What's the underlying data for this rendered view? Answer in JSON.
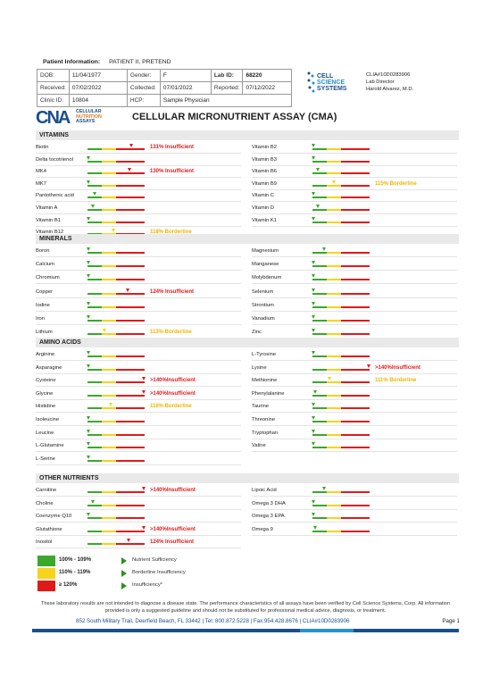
{
  "patient": {
    "label": "Patient Information:",
    "name": "PATIENT II, PRETEND",
    "dob_label": "DOB:",
    "dob": "11/04/1977",
    "gender_label": "Gender:",
    "gender": "F",
    "labid_label": "Lab ID:",
    "labid": "68220",
    "received_label": "Received:",
    "received": "07/02/2022",
    "collected_label": "Collected:",
    "collected": "07/01/2022",
    "reported_label": "Reported:",
    "reported": "07/12/2022",
    "clinic_label": "Clinic ID:",
    "clinic": "10804",
    "hcp_label": "HCP:",
    "hcp": "Sample Physician"
  },
  "lab": {
    "logo_lines": [
      "CELL",
      "SCIENCE",
      "SYSTEMS"
    ],
    "clia": "CLIA#10D0283906",
    "director_title": "Lab Director",
    "director": "Harold Alvarez, M.D."
  },
  "cna_logo": {
    "mark": "CNA",
    "lines": [
      "CELLULAR",
      "NUTRITION",
      "ASSAYS"
    ]
  },
  "title": "CELLULAR MICRONUTRIENT ASSAY (CMA)",
  "sections": [
    {
      "title": "VITAMINS",
      "left": [
        {
          "name": "Biotin",
          "pos": 0.76,
          "status": "131% Insufficient",
          "kind": "ins"
        },
        {
          "name": "Delta tocotrienol",
          "pos": 0.02,
          "status": "",
          "kind": ""
        },
        {
          "name": "MK4",
          "pos": 0.74,
          "status": "130% Insufficient",
          "kind": "ins"
        },
        {
          "name": "MK7",
          "pos": 0.02,
          "status": "",
          "kind": ""
        },
        {
          "name": "Pantothenic acid",
          "pos": 0.12,
          "status": "",
          "kind": ""
        },
        {
          "name": "Vitamin A",
          "pos": 0.1,
          "status": "",
          "kind": ""
        },
        {
          "name": "Vitamin B1",
          "pos": 0.02,
          "status": "",
          "kind": ""
        },
        {
          "name": "Vitamin B12",
          "pos": 0.45,
          "status": "118% Borderline",
          "kind": "bor"
        }
      ],
      "right": [
        {
          "name": "Vitamin B2",
          "pos": 0.02,
          "status": "",
          "kind": ""
        },
        {
          "name": "Vitamin B3",
          "pos": 0.02,
          "status": "",
          "kind": ""
        },
        {
          "name": "Vitamin B6",
          "pos": 0.1,
          "status": "",
          "kind": ""
        },
        {
          "name": "Vitamin B9",
          "pos": 0.38,
          "status": "115% Borderline",
          "kind": "bor"
        },
        {
          "name": "Vitamin C",
          "pos": 0.02,
          "status": "",
          "kind": ""
        },
        {
          "name": "Vitamin D",
          "pos": 0.1,
          "status": "",
          "kind": ""
        },
        {
          "name": "Vitamin K1",
          "pos": 0.02,
          "status": "",
          "kind": ""
        }
      ]
    },
    {
      "title": "MINERALS",
      "left": [
        {
          "name": "Boron",
          "pos": 0.02,
          "status": "",
          "kind": ""
        },
        {
          "name": "Calcium",
          "pos": 0.02,
          "status": "",
          "kind": ""
        },
        {
          "name": "Chromium",
          "pos": 0.02,
          "status": "",
          "kind": ""
        },
        {
          "name": "Copper",
          "pos": 0.71,
          "status": "124% Insufficient",
          "kind": "ins"
        },
        {
          "name": "Iodine",
          "pos": 0.02,
          "status": "",
          "kind": ""
        },
        {
          "name": "Iron",
          "pos": 0.02,
          "status": "",
          "kind": ""
        },
        {
          "name": "Lithium",
          "pos": 0.3,
          "status": "113% Borderline",
          "kind": "bor"
        }
      ],
      "right": [
        {
          "name": "Magnesium",
          "pos": 0.2,
          "status": "",
          "kind": ""
        },
        {
          "name": "Manganese",
          "pos": 0.02,
          "status": "",
          "kind": ""
        },
        {
          "name": "Molybdenum",
          "pos": 0.02,
          "status": "",
          "kind": ""
        },
        {
          "name": "Selenium",
          "pos": 0.02,
          "status": "",
          "kind": ""
        },
        {
          "name": "Strontium",
          "pos": 0.02,
          "status": "",
          "kind": ""
        },
        {
          "name": "Vanadium",
          "pos": 0.02,
          "status": "",
          "kind": ""
        },
        {
          "name": "Zinc",
          "pos": 0.02,
          "status": "",
          "kind": ""
        }
      ]
    },
    {
      "title": "AMINO ACIDS",
      "left": [
        {
          "name": "Arginine",
          "pos": 0.02,
          "status": "",
          "kind": ""
        },
        {
          "name": "Asparagine",
          "pos": 0.02,
          "status": "",
          "kind": ""
        },
        {
          "name": "Cysteine",
          "pos": 0.98,
          "status": ">140%Insufficient",
          "kind": "ins"
        },
        {
          "name": "Glycine",
          "pos": 0.98,
          "status": ">140%Insufficient",
          "kind": "ins"
        },
        {
          "name": "Histidine",
          "pos": 0.4,
          "status": "116% Borderline",
          "kind": "bor"
        },
        {
          "name": "Isoleucine",
          "pos": 0.02,
          "status": "",
          "kind": ""
        },
        {
          "name": "Leucine",
          "pos": 0.02,
          "status": "",
          "kind": ""
        },
        {
          "name": "L-Glutamine",
          "pos": 0.02,
          "status": "",
          "kind": ""
        },
        {
          "name": "L-Serine",
          "pos": 0.02,
          "status": "",
          "kind": ""
        }
      ],
      "right": [
        {
          "name": "L-Tyrosine",
          "pos": 0.02,
          "status": "",
          "kind": ""
        },
        {
          "name": "Lysine",
          "pos": 0.98,
          "status": ">140%Insufficient",
          "kind": "ins"
        },
        {
          "name": "Methionine",
          "pos": 0.3,
          "status": "111% Borderline",
          "kind": "bor"
        },
        {
          "name": "Phenylalanine",
          "pos": 0.05,
          "status": "",
          "kind": ""
        },
        {
          "name": "Taurine",
          "pos": 0.02,
          "status": "",
          "kind": ""
        },
        {
          "name": "Threonine",
          "pos": 0.02,
          "status": "",
          "kind": ""
        },
        {
          "name": "Tryptophan",
          "pos": 0.02,
          "status": "",
          "kind": ""
        },
        {
          "name": "Valine",
          "pos": 0.02,
          "status": "",
          "kind": ""
        }
      ]
    },
    {
      "title": "OTHER NUTRIENTS",
      "left": [
        {
          "name": "Carnitine",
          "pos": 0.98,
          "status": ">140%Insufficient",
          "kind": "ins"
        },
        {
          "name": "Choline",
          "pos": 0.1,
          "status": "",
          "kind": ""
        },
        {
          "name": "Coenzyme Q10",
          "pos": 0.02,
          "status": "",
          "kind": ""
        },
        {
          "name": "Glutathione",
          "pos": 0.98,
          "status": ">140%Insufficient",
          "kind": "ins"
        },
        {
          "name": "Inositol",
          "pos": 0.72,
          "status": "124% Insufficient",
          "kind": "ins"
        }
      ],
      "right": [
        {
          "name": "Lipoic Acid",
          "pos": 0.2,
          "status": "",
          "kind": ""
        },
        {
          "name": "Omega 3 DHA",
          "pos": 0.02,
          "status": "",
          "kind": ""
        },
        {
          "name": "Omega 3 EPA",
          "pos": 0.02,
          "status": "",
          "kind": ""
        },
        {
          "name": "Omega 9",
          "pos": 0.05,
          "status": "",
          "kind": ""
        }
      ]
    }
  ],
  "legend": [
    {
      "range": "100% - 109%",
      "desc": "Nutrient Sufficiency",
      "color": "#3aa82b"
    },
    {
      "range": "110% - 119%",
      "desc": "Borderline Insufficiency",
      "color": "#f7d31b"
    },
    {
      "range": "≥ 120%",
      "desc": "Insufficiency*",
      "color": "#e01a1a"
    }
  ],
  "disclaimer": "These laboratory results are not intended to diagnose a disease state. The performance characteristics of all assays have been verified by Cell Science Systems, Corp. All information provided is only a suggested guideline and should not be substituted for professional medical advice, diagnosis, or treatment.",
  "footer": {
    "address": "852 South Military Trail, Deerfield Beach, FL 33442  |  Tel: 800.872.5228  |  Fax:954.428.8676  |  CLIA#10D0283906",
    "page": "Page 1"
  },
  "colors": {
    "green": "#3aa82b",
    "yellow": "#f7d31b",
    "red": "#e01a1a",
    "brand": "#1a4f8a"
  }
}
